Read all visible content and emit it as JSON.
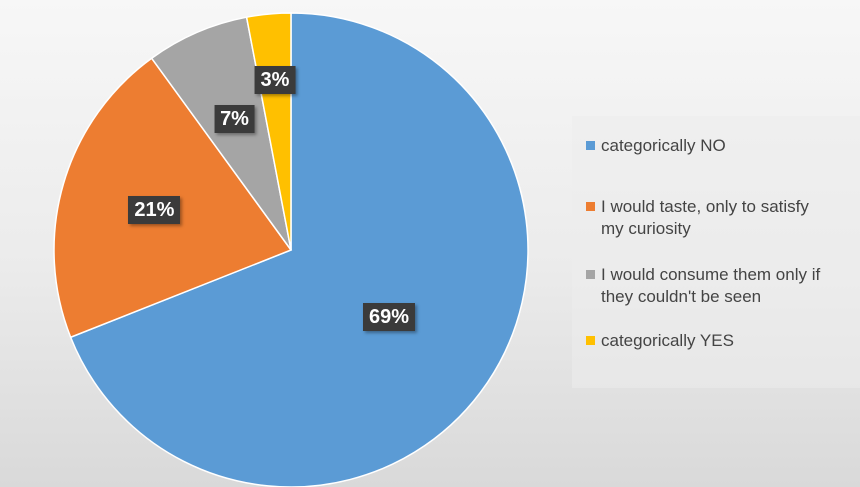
{
  "chart_data": {
    "type": "pie",
    "title": "",
    "legend_position": "right",
    "start_angle_deg": 0,
    "direction": "clockwise",
    "slices": [
      {
        "label": "categorically NO",
        "value": 69,
        "display": "69%",
        "color": "#5b9bd5"
      },
      {
        "label": "I would taste, only to satisfy\nmy curiosity",
        "value": 21,
        "display": "21%",
        "color": "#ed7d31"
      },
      {
        "label": "I would consume them only if\nthey couldn't be seen",
        "value": 7,
        "display": "7%",
        "color": "#a5a5a5"
      },
      {
        "label": "categorically YES",
        "value": 3,
        "display": "3%",
        "color": "#ffc000"
      }
    ]
  }
}
